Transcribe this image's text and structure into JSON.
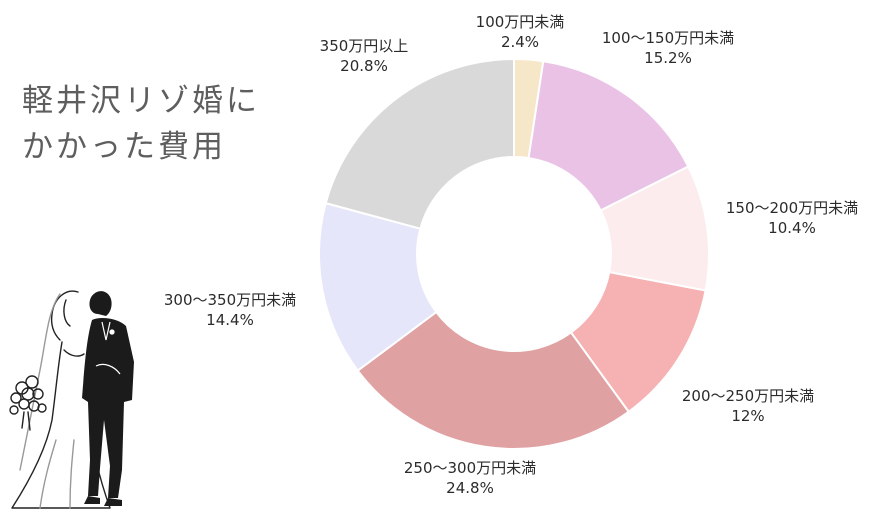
{
  "title_lines": [
    "軽井沢リゾ婚に",
    "かかった費用"
  ],
  "chart_data": {
    "type": "pie",
    "donut": true,
    "categories": [
      "100万円未満",
      "100〜150万円未満",
      "150〜200万円未満",
      "200〜250万円未満",
      "250〜300万円未満",
      "300〜350万円未満",
      "350万円以上"
    ],
    "values": [
      2.4,
      15.2,
      10.4,
      12,
      24.8,
      14.4,
      20.8
    ],
    "value_labels": [
      "2.4%",
      "15.2%",
      "10.4%",
      "12%",
      "24.8%",
      "14.4%",
      "20.8%"
    ],
    "colors": [
      "#f6e7c9",
      "#e9c2e6",
      "#fdecee",
      "#f6b1b3",
      "#e0a1a3",
      "#e6e6fb",
      "#d9d9d9"
    ],
    "legend": "none"
  },
  "illustration": "wedding-couple"
}
